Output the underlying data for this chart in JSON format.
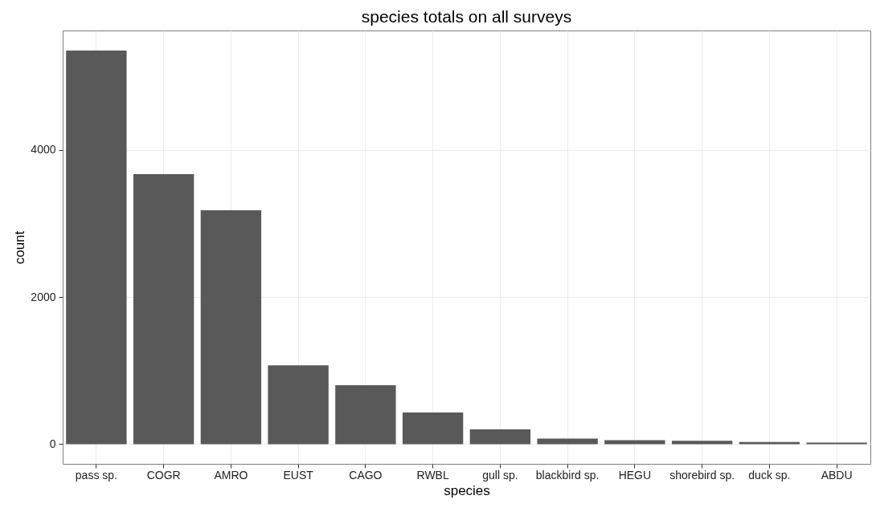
{
  "chart_data": {
    "type": "bar",
    "title": "species totals on all surveys",
    "xlabel": "species",
    "ylabel": "count",
    "categories": [
      "pass sp.",
      "COGR",
      "AMRO",
      "EUST",
      "CAGO",
      "RWBL",
      "gull sp.",
      "blackbird sp.",
      "HEGU",
      "shorebird sp.",
      "duck sp.",
      "ABDU"
    ],
    "values": [
      5350,
      3670,
      3180,
      1070,
      800,
      430,
      200,
      75,
      55,
      45,
      30,
      20
    ],
    "color": "#595959",
    "ylim": [
      -268,
      5623
    ],
    "yticks": [
      0,
      2000,
      4000
    ],
    "grid": true
  }
}
